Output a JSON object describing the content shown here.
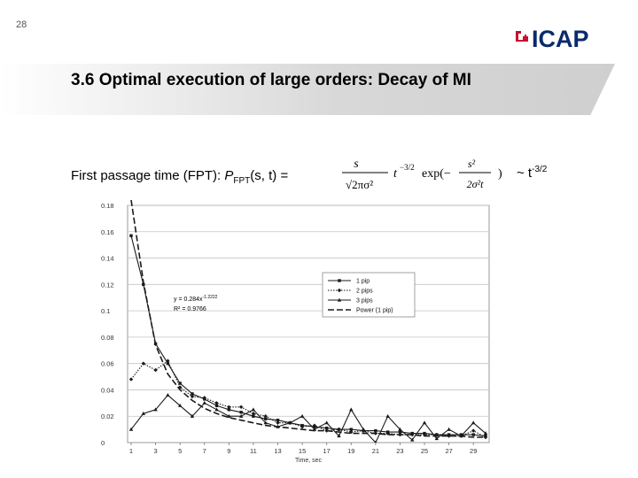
{
  "slide": {
    "page_number": "28",
    "logo_text": "ICAP",
    "title": "3.6 Optimal execution of large orders: Decay of MI",
    "formula_label_prefix": "First passage time (FPT): ",
    "formula_label_p": "P",
    "formula_label_sub": "FPT",
    "formula_label_args": "(s, t) =",
    "formula": {
      "num": "s",
      "den": "√2πσ²",
      "power": "t",
      "power_exp": "−3/2",
      "exp": "exp(−",
      "exp_num": "s²",
      "exp_den": "2σ²t",
      "exp_close": ")"
    },
    "asymptotic_prefix": "~ t",
    "asymptotic_exp": "-3/2"
  },
  "chart_data": {
    "type": "line",
    "x": [
      1,
      2,
      3,
      4,
      5,
      6,
      7,
      8,
      9,
      10,
      11,
      12,
      13,
      14,
      15,
      16,
      17,
      18,
      19,
      20,
      21,
      22,
      23,
      24,
      25,
      26,
      27,
      28,
      29,
      30
    ],
    "xticks": [
      1,
      3,
      5,
      7,
      9,
      11,
      13,
      15,
      17,
      19,
      21,
      23,
      25,
      27,
      29
    ],
    "yticks": [
      "0",
      "0.02",
      "0.04",
      "0.06",
      "0.08",
      "0.1",
      "0.12",
      "0.14",
      "0.16",
      "0.18"
    ],
    "xlabel": "Time, sec",
    "ylabel": "",
    "ylim": [
      0,
      0.18
    ],
    "xlim": [
      1,
      30
    ],
    "grid": "horizontal",
    "legend_position": "right",
    "series": [
      {
        "name": "1 pip",
        "style": "solid",
        "marker": "square",
        "values": [
          0.157,
          0.12,
          0.075,
          0.06,
          0.045,
          0.037,
          0.033,
          0.028,
          0.025,
          0.023,
          0.02,
          0.018,
          0.017,
          0.015,
          0.013,
          0.012,
          0.011,
          0.01,
          0.01,
          0.009,
          0.009,
          0.008,
          0.008,
          0.007,
          0.007,
          0.006,
          0.006,
          0.006,
          0.006,
          0.005
        ]
      },
      {
        "name": "2 pips",
        "style": "dotted",
        "marker": "diamond",
        "values": [
          0.048,
          0.06,
          0.055,
          0.062,
          0.042,
          0.035,
          0.034,
          0.03,
          0.027,
          0.027,
          0.022,
          0.02,
          0.015,
          0.015,
          0.012,
          0.013,
          0.009,
          0.01,
          0.008,
          0.009,
          0.007,
          0.007,
          0.006,
          0.006,
          0.006,
          0.006,
          0.005,
          0.005,
          0.009,
          0.004
        ]
      },
      {
        "name": "3 pips",
        "style": "solid",
        "marker": "triangle",
        "values": [
          0.01,
          0.022,
          0.025,
          0.036,
          0.028,
          0.02,
          0.03,
          0.025,
          0.02,
          0.02,
          0.025,
          0.015,
          0.012,
          0.015,
          0.02,
          0.01,
          0.015,
          0.005,
          0.025,
          0.01,
          0.0,
          0.02,
          0.01,
          0.002,
          0.015,
          0.003,
          0.01,
          0.005,
          0.015,
          0.007
        ]
      },
      {
        "name": "Power (1 pip)",
        "style": "dashed",
        "marker": "none",
        "values": [
          0.284,
          0.122,
          0.074,
          0.052,
          0.04,
          0.032,
          0.026,
          0.022,
          0.019,
          0.017,
          0.015,
          0.013,
          0.012,
          0.011,
          0.01,
          0.009,
          0.009,
          0.008,
          0.007,
          0.007,
          0.007,
          0.006,
          0.006,
          0.006,
          0.005,
          0.005,
          0.005,
          0.005,
          0.004,
          0.004
        ]
      }
    ],
    "annotations": {
      "equation": "y = 0.284x",
      "equation_exp": "-1.2222",
      "r_squared": "R² = 0.9766"
    }
  }
}
